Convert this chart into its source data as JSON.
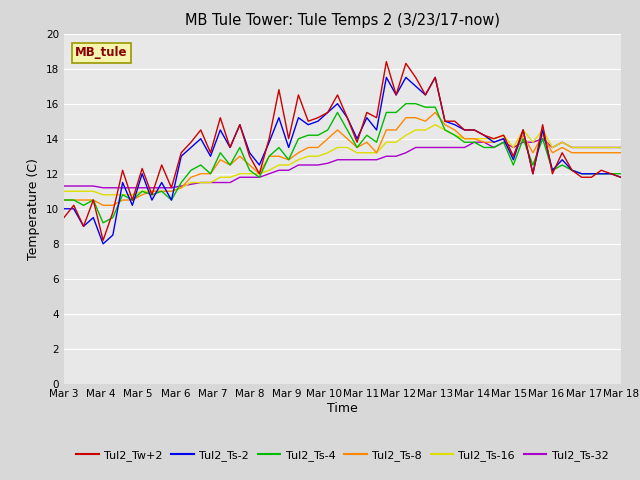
{
  "title": "MB Tule Tower: Tule Temps 2 (3/23/17-now)",
  "xlabel": "Time",
  "ylabel": "Temperature (C)",
  "ylim": [
    0,
    20
  ],
  "yticks": [
    0,
    2,
    4,
    6,
    8,
    10,
    12,
    14,
    16,
    18,
    20
  ],
  "bg_color": "#d8d8d8",
  "plot_bg_color": "#e8e8e8",
  "legend_label": "MB_tule",
  "series_colors": {
    "Tul2_Tw+2": "#cc0000",
    "Tul2_Ts-2": "#0000ee",
    "Tul2_Ts-4": "#00bb00",
    "Tul2_Ts-8": "#ff8800",
    "Tul2_Ts-16": "#dddd00",
    "Tul2_Ts-32": "#aa00cc"
  },
  "x_labels": [
    "Mar 3",
    "Mar 4",
    "Mar 5",
    "Mar 6",
    "Mar 7",
    "Mar 8",
    "Mar 9",
    "Mar 10",
    "Mar 11",
    "Mar 12",
    "Mar 13",
    "Mar 14",
    "Mar 15",
    "Mar 16",
    "Mar 17",
    "Mar 18"
  ],
  "series": {
    "Tul2_Tw+2": [
      9.5,
      10.2,
      9.0,
      10.5,
      8.2,
      9.8,
      12.2,
      10.5,
      12.3,
      10.8,
      12.5,
      11.2,
      13.2,
      13.8,
      14.5,
      13.2,
      15.2,
      13.5,
      14.8,
      13.0,
      12.0,
      14.0,
      16.8,
      14.0,
      16.5,
      15.0,
      15.2,
      15.5,
      16.5,
      15.2,
      13.8,
      15.5,
      15.2,
      18.4,
      16.5,
      18.3,
      17.5,
      16.5,
      17.5,
      15.0,
      15.0,
      14.5,
      14.5,
      14.2,
      14.0,
      14.2,
      13.0,
      14.5,
      12.0,
      14.8,
      12.0,
      13.2,
      12.2,
      11.8,
      11.8,
      12.2,
      12.0,
      11.8
    ],
    "Tul2_Ts-2": [
      10.0,
      10.0,
      9.0,
      9.5,
      8.0,
      8.5,
      11.5,
      10.2,
      12.0,
      10.5,
      11.5,
      10.5,
      13.0,
      13.5,
      14.0,
      13.0,
      14.5,
      13.5,
      14.8,
      13.2,
      12.5,
      13.8,
      15.2,
      13.5,
      15.2,
      14.8,
      15.0,
      15.5,
      16.0,
      15.2,
      14.0,
      15.2,
      14.5,
      17.5,
      16.5,
      17.5,
      17.0,
      16.5,
      17.5,
      15.0,
      14.8,
      14.5,
      14.5,
      14.2,
      13.8,
      14.0,
      12.8,
      14.5,
      12.0,
      14.5,
      12.2,
      12.8,
      12.2,
      12.0,
      12.0,
      12.0,
      12.0,
      11.8
    ],
    "Tul2_Ts-4": [
      10.5,
      10.5,
      10.2,
      10.5,
      9.2,
      9.5,
      10.8,
      10.5,
      11.0,
      10.8,
      11.0,
      10.5,
      11.5,
      12.2,
      12.5,
      12.0,
      13.2,
      12.5,
      13.5,
      12.2,
      11.8,
      13.0,
      13.5,
      12.8,
      14.0,
      14.2,
      14.2,
      14.5,
      15.5,
      14.5,
      13.5,
      14.2,
      13.8,
      15.5,
      15.5,
      16.0,
      16.0,
      15.8,
      15.8,
      14.5,
      14.2,
      13.8,
      13.8,
      13.5,
      13.5,
      13.8,
      12.5,
      14.0,
      12.5,
      14.0,
      12.2,
      12.5,
      12.2,
      12.0,
      12.0,
      12.0,
      12.0,
      12.0
    ],
    "Tul2_Ts-8": [
      10.5,
      10.5,
      10.5,
      10.5,
      10.2,
      10.2,
      10.5,
      10.5,
      10.8,
      11.0,
      11.0,
      11.0,
      11.2,
      11.8,
      12.0,
      12.0,
      12.8,
      12.5,
      13.0,
      12.5,
      12.0,
      13.0,
      13.0,
      12.8,
      13.2,
      13.5,
      13.5,
      14.0,
      14.5,
      14.0,
      13.5,
      13.8,
      13.2,
      14.5,
      14.5,
      15.2,
      15.2,
      15.0,
      15.5,
      14.8,
      14.5,
      14.0,
      14.0,
      13.8,
      13.8,
      14.0,
      13.0,
      14.2,
      13.2,
      14.2,
      13.2,
      13.5,
      13.2,
      13.2,
      13.2,
      13.2,
      13.2,
      13.2
    ],
    "Tul2_Ts-16": [
      11.0,
      11.0,
      11.0,
      11.0,
      10.8,
      10.8,
      10.8,
      10.8,
      11.0,
      11.0,
      11.0,
      11.0,
      11.2,
      11.5,
      11.5,
      11.5,
      11.8,
      11.8,
      12.0,
      12.0,
      12.0,
      12.2,
      12.5,
      12.5,
      12.8,
      13.0,
      13.0,
      13.2,
      13.5,
      13.5,
      13.2,
      13.2,
      13.2,
      13.8,
      13.8,
      14.2,
      14.5,
      14.5,
      14.8,
      14.5,
      14.2,
      14.0,
      14.0,
      14.0,
      14.0,
      14.2,
      13.5,
      14.5,
      13.8,
      14.5,
      13.5,
      13.8,
      13.5,
      13.5,
      13.5,
      13.5,
      13.5,
      13.5
    ],
    "Tul2_Ts-32": [
      11.3,
      11.3,
      11.3,
      11.3,
      11.2,
      11.2,
      11.2,
      11.2,
      11.2,
      11.2,
      11.2,
      11.2,
      11.3,
      11.4,
      11.5,
      11.5,
      11.5,
      11.5,
      11.8,
      11.8,
      11.8,
      12.0,
      12.2,
      12.2,
      12.5,
      12.5,
      12.5,
      12.6,
      12.8,
      12.8,
      12.8,
      12.8,
      12.8,
      13.0,
      13.0,
      13.2,
      13.5,
      13.5,
      13.5,
      13.5,
      13.5,
      13.5,
      13.8,
      13.8,
      13.5,
      13.8,
      13.5,
      13.8,
      13.8,
      14.0,
      13.5,
      13.8,
      13.5,
      13.5,
      13.5,
      13.5,
      13.5,
      13.5
    ]
  }
}
